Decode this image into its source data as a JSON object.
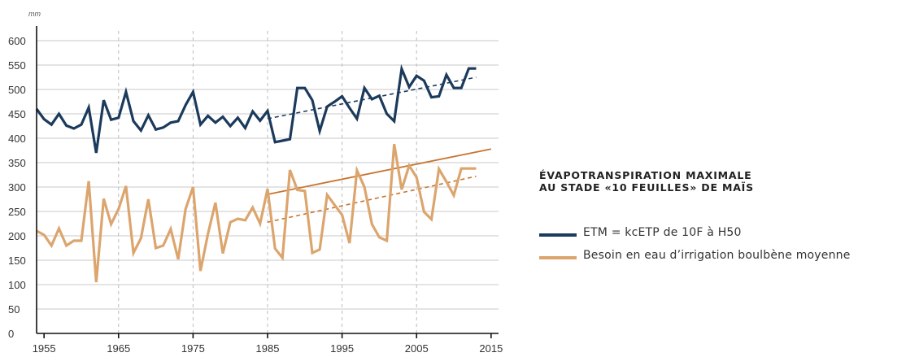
{
  "chart_data": {
    "type": "line",
    "unit": "mm",
    "title": "ÉVAPOTRANSPIRATION MAXIMALE\nAU STADE «10 FEUILLES» DE MAÏS",
    "title_lines": [
      "ÉVAPOTRANSPIRATION MAXIMALE",
      "AU STADE «10 FEUILLES» DE MAÏS"
    ],
    "xlabel": "",
    "ylabel": "",
    "xlim": [
      1954,
      2016
    ],
    "ylim": [
      0,
      620
    ],
    "xticks": [
      1955,
      1965,
      1975,
      1985,
      1995,
      2005,
      2015
    ],
    "yticks": [
      0,
      50,
      100,
      150,
      200,
      250,
      300,
      350,
      400,
      450,
      500,
      550,
      600
    ],
    "grid": "vertical dashed at x ticks, horizontal solid at y ticks",
    "legend_position": "right",
    "x": [
      1954,
      1955,
      1956,
      1957,
      1958,
      1959,
      1960,
      1961,
      1962,
      1963,
      1964,
      1965,
      1966,
      1967,
      1968,
      1969,
      1970,
      1971,
      1972,
      1973,
      1974,
      1975,
      1976,
      1977,
      1978,
      1979,
      1980,
      1981,
      1982,
      1983,
      1984,
      1985,
      1986,
      1987,
      1988,
      1989,
      1990,
      1991,
      1992,
      1993,
      1994,
      1995,
      1996,
      1997,
      1998,
      1999,
      2000,
      2001,
      2002,
      2003,
      2004,
      2005,
      2006,
      2007,
      2008,
      2009,
      2010,
      2011,
      2012,
      2013
    ],
    "series": [
      {
        "name": "ETM = kcETP de 10F à H50",
        "color": "#1b3a5c",
        "values": [
          460,
          439,
          428,
          450,
          426,
          420,
          428,
          463,
          370,
          478,
          438,
          442,
          495,
          435,
          416,
          447,
          418,
          422,
          432,
          435,
          468,
          495,
          428,
          446,
          432,
          444,
          425,
          442,
          421,
          455,
          436,
          456,
          392,
          395,
          398,
          503,
          503,
          478,
          415,
          465,
          475,
          486,
          462,
          440,
          503,
          480,
          487,
          450,
          435,
          542,
          505,
          528,
          518,
          484,
          486,
          530,
          503,
          503,
          543,
          543
        ],
        "trend": {
          "from": [
            1985,
            440
          ],
          "to": [
            2013,
            525
          ],
          "style": "dashed"
        }
      },
      {
        "name": "Besoin en eau d’irrigation boulbène moyenne",
        "color": "#dca56e",
        "values": [
          210,
          202,
          180,
          215,
          180,
          190,
          190,
          312,
          105,
          276,
          224,
          255,
          302,
          165,
          195,
          275,
          175,
          180,
          214,
          152,
          255,
          300,
          128,
          204,
          268,
          164,
          228,
          235,
          232,
          258,
          225,
          296,
          174,
          155,
          335,
          294,
          292,
          165,
          172,
          284,
          263,
          243,
          185,
          334,
          300,
          224,
          197,
          190,
          388,
          295,
          344,
          320,
          249,
          234,
          337,
          311,
          283,
          338,
          338,
          338
        ],
        "trend": {
          "from": [
            1985,
            228
          ],
          "to": [
            2013,
            322
          ],
          "style": "dashed"
        }
      }
    ],
    "extra_trend": {
      "color": "#c8742e",
      "from": [
        1985,
        285
      ],
      "to": [
        2015,
        378
      ],
      "style": "solid"
    }
  }
}
